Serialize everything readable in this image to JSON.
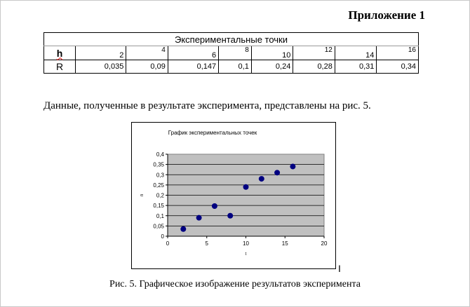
{
  "appendix_label": "Приложение 1",
  "table": {
    "title": "Экспериментальные точки",
    "row_h_label": "h",
    "row_r_label": "R",
    "h_values": [
      "2",
      "4",
      "6",
      "8",
      "10",
      "12",
      "14",
      "16"
    ],
    "r_values": [
      "0,035",
      "0,09",
      "0,147",
      "0,1",
      "0,24",
      "0,28",
      "0,31",
      "0,34"
    ]
  },
  "text_before_chart": "Данные, полученные в результате эксперимента, представлены на рис. 5.",
  "cursor_glyph": "I",
  "figure_caption": "Рис. 5. Графическое изображение результатов эксперимента",
  "chart_data": {
    "type": "scatter",
    "title": "График экспериментальных точек",
    "xlabel": "t",
    "ylabel": "п",
    "xlim": [
      0,
      20
    ],
    "ylim": [
      0,
      0.4
    ],
    "x_ticks": [
      0,
      5,
      10,
      15,
      20
    ],
    "y_ticks": [
      0,
      0.05,
      0.1,
      0.15,
      0.2,
      0.25,
      0.3,
      0.35,
      0.4
    ],
    "x_tick_labels": [
      "0",
      "5",
      "10",
      "15",
      "20"
    ],
    "y_tick_labels": [
      "0",
      "0,05",
      "0,1",
      "0,15",
      "0,2",
      "0,25",
      "0,3",
      "0,35",
      "0,4"
    ],
    "grid": "horizontal",
    "plot_background": "#c0c0c0",
    "point_color": "#000080",
    "x": [
      2,
      4,
      6,
      8,
      10,
      12,
      14,
      16
    ],
    "y": [
      0.035,
      0.09,
      0.147,
      0.1,
      0.24,
      0.28,
      0.31,
      0.34
    ]
  }
}
